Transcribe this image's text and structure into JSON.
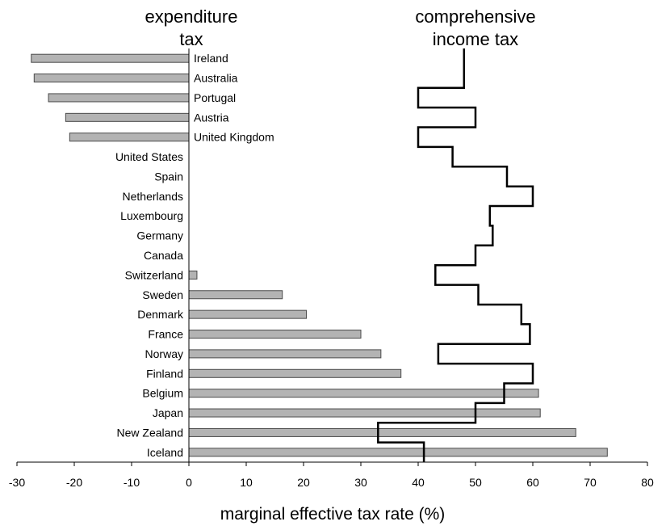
{
  "chart_data": {
    "type": "bar",
    "titles": {
      "left": [
        "expenditure",
        "tax"
      ],
      "right": [
        "comprehensive",
        "income tax"
      ]
    },
    "xlabel": "marginal effective tax rate (%)",
    "xlim": [
      -30,
      80
    ],
    "xticks": [
      -30,
      -20,
      -10,
      0,
      10,
      20,
      30,
      40,
      50,
      60,
      70,
      80
    ],
    "categories": [
      "Ireland",
      "Australia",
      "Portugal",
      "Austria",
      "United Kingdom",
      "United States",
      "Spain",
      "Netherlands",
      "Luxembourg",
      "Germany",
      "Canada",
      "Switzerland",
      "Sweden",
      "Denmark",
      "France",
      "Norway",
      "Finland",
      "Belgium",
      "Japan",
      "New Zealand",
      "Iceland"
    ],
    "series": [
      {
        "name": "expenditure tax",
        "type": "bar",
        "values": [
          -27.5,
          -27,
          -24.5,
          -21.5,
          -20.8,
          0,
          0,
          0,
          0,
          0,
          0,
          1.4,
          16.3,
          20.5,
          30,
          33.5,
          37,
          61,
          61.3,
          67.5,
          73
        ]
      },
      {
        "name": "comprehensive income tax",
        "type": "step-line",
        "values": [
          48,
          48,
          40,
          50,
          40,
          46,
          55.5,
          60,
          52.5,
          53,
          50,
          43,
          50.5,
          58,
          59.5,
          43.5,
          60,
          55,
          50,
          33,
          41
        ]
      }
    ],
    "grid": false,
    "legend": "none",
    "colors": {
      "bar_fill": "#b3b3b3",
      "bar_edge": "#4a4a4a",
      "line": "#000000"
    }
  }
}
